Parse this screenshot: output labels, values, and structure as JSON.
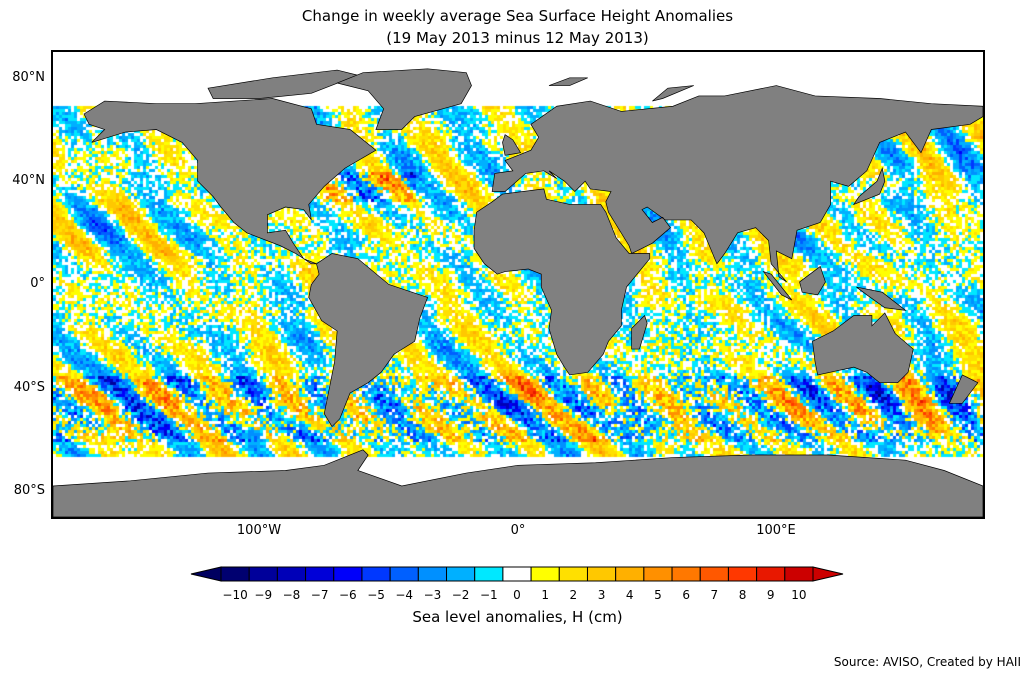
{
  "title": {
    "line1": "Change in weekly average Sea Surface Height Anomalies",
    "line2": "(19 May 2013 minus 12 May 2013)"
  },
  "axes": {
    "lat_labels": [
      "80°N",
      "40°N",
      "0°",
      "40°S",
      "80°S"
    ],
    "lat_values": [
      80,
      40,
      0,
      -40,
      -80
    ],
    "lon_labels": [
      "100°W",
      "0°",
      "100°E"
    ],
    "lon_values": [
      -100,
      0,
      100
    ]
  },
  "colorbar": {
    "label": "Sea level anomalies, H (cm)",
    "ticks": [
      "−10",
      "−9",
      "−8",
      "−7",
      "−6",
      "−5",
      "−4",
      "−3",
      "−2",
      "−1",
      "0",
      "1",
      "2",
      "3",
      "4",
      "5",
      "6",
      "7",
      "8",
      "9",
      "10"
    ],
    "colors": [
      "#000070",
      "#00009a",
      "#0000b8",
      "#0000d8",
      "#0000fa",
      "#0038ff",
      "#0060ff",
      "#0090ff",
      "#00b0ff",
      "#00e8ff",
      "#ffffff",
      "#ffff00",
      "#ffe000",
      "#ffc800",
      "#ffb000",
      "#ff9000",
      "#ff7800",
      "#ff5800",
      "#ff3800",
      "#e81800",
      "#cc0000"
    ],
    "under_color": "#000060",
    "over_color": "#cc0000"
  },
  "land_color": "#808080",
  "source": "Source: AVISO, Created by HAII"
}
